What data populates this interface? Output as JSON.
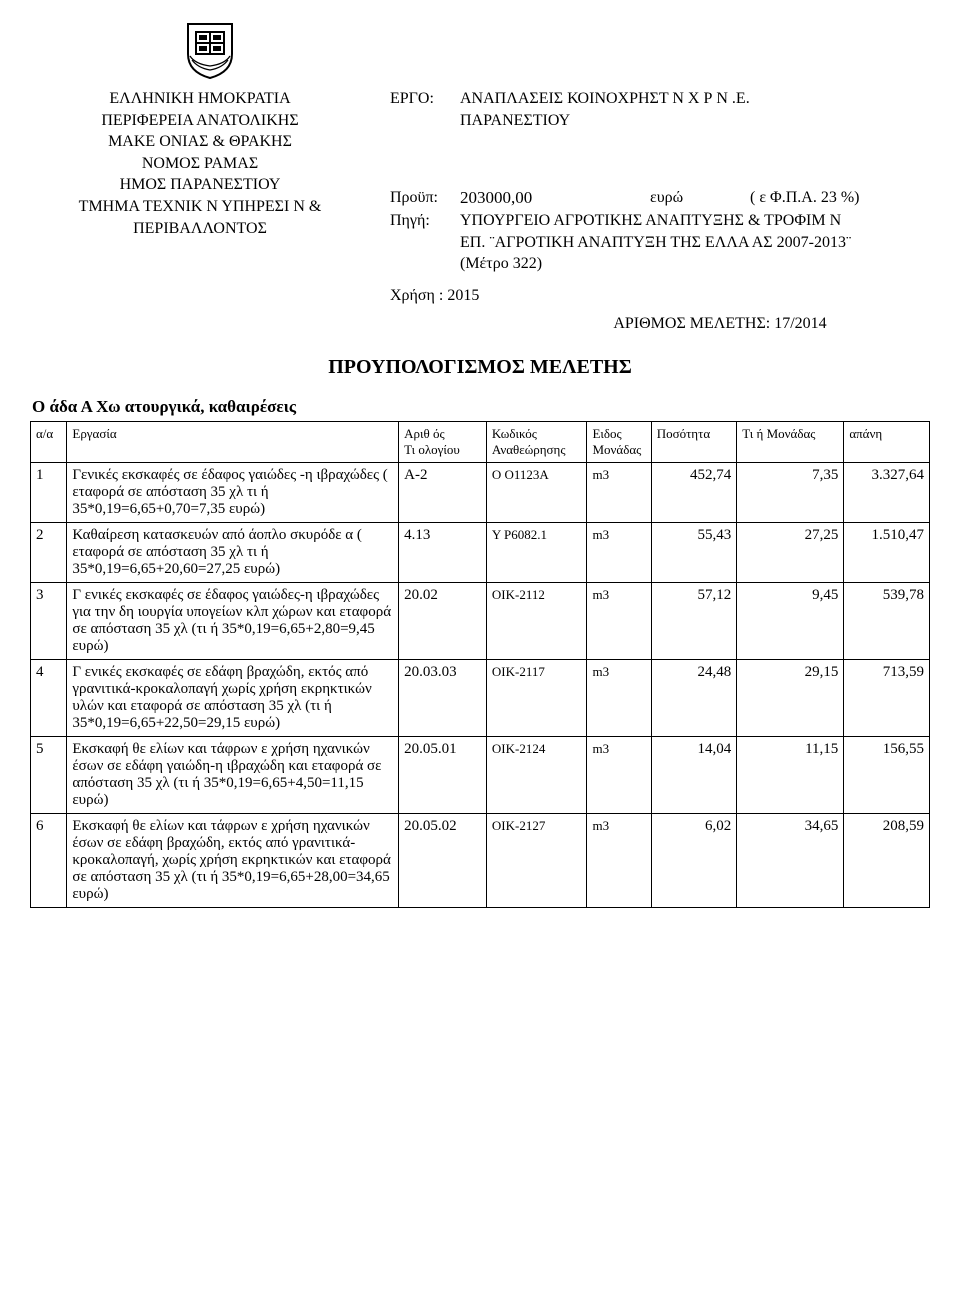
{
  "emblem": {
    "stroke": "#000000",
    "fill": "#ffffff"
  },
  "header": {
    "left": {
      "l1": "ΕΛΛΗΝΙΚΗ   ΗΜΟΚΡΑΤΙΑ",
      "l2": "ΠΕΡΙΦΕΡΕΙΑ ΑΝΑΤΟΛΙΚΗΣ",
      "l3": "ΜΑΚΕ   ΟΝΙΑΣ & ΘΡΑΚΗΣ",
      "l4": "ΝΟΜΟΣ   ΡΑΜΑΣ",
      "l5": "ΗΜΟΣ ΠΑΡΑΝΕΣΤΙΟΥ",
      "l6": "ΤΜΗΜΑ ΤΕΧΝΙΚ   Ν ΥΠΗΡΕΣΙ   Ν &",
      "l7": "ΠΕΡΙΒΑΛΛΟΝΤΟΣ"
    },
    "right": {
      "project_label": "ΕΡΓΟ:",
      "project_l1": "ΑΝΑΠΛΑΣΕΙΣ ΚΟΙΝΟΧΡΗΣΤ   Ν Χ   Ρ   Ν   .Ε.",
      "project_l2": "ΠΑΡΑΝΕΣΤΙΟΥ",
      "budget_label": "Προϋπ:",
      "budget_amount": "203000,00",
      "budget_currency": "ευρώ",
      "budget_fpa": "(   ε Φ.Π.Α. 23 %)",
      "source_label": "Πηγή:",
      "source_l1": "ΥΠΟΥΡΓΕΙΟ ΑΓΡΟΤΙΚΗΣ ΑΝΑΠΤΥΞΗΣ & ΤΡΟΦΙΜ   Ν",
      "source_l2": "ΕΠ. ¨ΑΓΡΟΤΙΚΗ ΑΝΑΠΤΥΞΗ ΤΗΣ ΕΛΛΑ   ΑΣ 2007-2013¨",
      "source_l3": "(Μέτρο 322)",
      "use_label": "Χρήση :",
      "use_value": "2015",
      "study_no": "ΑΡΙΘΜΟΣ ΜΕΛΕΤΗΣ: 17/2014"
    }
  },
  "main_title": "ΠΡΟΥΠΟΛΟΓΙΣΜΟΣ ΜΕΛΕΤΗΣ",
  "group_title": "Ο   άδα Α Χω   ατουργικά, καθαιρέσεις",
  "columns": {
    "aa": "α/α",
    "erg": "Εργασία",
    "art_l1": "Αριθ   ός",
    "art_l2": "Τι   ολογίου",
    "kod_l1": "Κωδικός",
    "kod_l2": "Αναθεώρησης",
    "unit_l1": "Ειδος",
    "unit_l2": "Μονάδας",
    "qty": "Ποσότητα",
    "rate": "Τι   ή Μονάδας",
    "cost": "απάνη"
  },
  "rows": [
    {
      "aa": "1",
      "erg": "Γενικές εκσκαφές σε έδαφος γαιώδες -η   ιβραχώδες (   εταφορά σε απόσταση 35 χλ    τι   ή 35*0,19=6,65+0,70=7,35 ευρώ)",
      "art": "Α-2",
      "kod": "Ο  Ο1123Α",
      "unit": "m3",
      "qty": "452,74",
      "rate": "7,35",
      "cost": "3.327,64"
    },
    {
      "aa": "2",
      "erg": "Καθαίρεση κατασκευών από άοπλο σκυρόδε   α (   εταφορά σε απόσταση 35 χλ    τι   ή 35*0,19=6,65+20,60=27,25 ευρώ)",
      "art": "4.13",
      "kod": "Υ  Ρ6082.1",
      "unit": "m3",
      "qty": "55,43",
      "rate": "27,25",
      "cost": "1.510,47"
    },
    {
      "aa": "3",
      "erg": "Γ  ενικές εκσκαφές σε έδαφος γαιώδες-η   ιβραχώδες για την δη   ιουργία υπογείων κλπ χώρων και   εταφορά σε απόσταση 35 χλ    (τι   ή 35*0,19=6,65+2,80=9,45 ευρώ)",
      "art": "20.02",
      "kod": "ΟΙΚ-2112",
      "unit": "m3",
      "qty": "57,12",
      "rate": "9,45",
      "cost": "539,78"
    },
    {
      "aa": "4",
      "erg": "Γ  ενικές εκσκαφές σε εδάφη βραχώδη, εκτός από γρανιτικά-κροκαλοπαγή χωρίς χρήση εκρηκτικών υλών και   εταφορά σε απόσταση 35 χλ    (τι   ή 35*0,19=6,65+22,50=29,15 ευρώ)",
      "art": "20.03.03",
      "kod": "ΟΙΚ-2117",
      "unit": "m3",
      "qty": "24,48",
      "rate": "29,15",
      "cost": "713,59"
    },
    {
      "aa": "5",
      "erg": "Εκσκαφή θε   ελίων και τάφρων   ε χρήση   ηχανικών   έσων σε εδάφη γαιώδη-η   ιβραχώδη και   εταφορά σε απόσταση 35 χλ    (τι   ή 35*0,19=6,65+4,50=11,15 ευρώ)",
      "art": "20.05.01",
      "kod": "ΟΙΚ-2124",
      "unit": "m3",
      "qty": "14,04",
      "rate": "11,15",
      "cost": "156,55"
    },
    {
      "aa": "6",
      "erg": "Εκσκαφή θε   ελίων και τάφρων   ε χρήση   ηχανικών   έσων σε εδάφη βραχώδη, εκτός από γρανιτικά-κροκαλοπαγή, χωρίς χρήση εκρηκτικών και   εταφορά σε απόσταση 35 χλ    (τι   ή 35*0,19=6,65+28,00=34,65 ευρώ)",
      "art": "20.05.02",
      "kod": "ΟΙΚ-2127",
      "unit": "m3",
      "qty": "6,02",
      "rate": "34,65",
      "cost": "208,59"
    }
  ]
}
